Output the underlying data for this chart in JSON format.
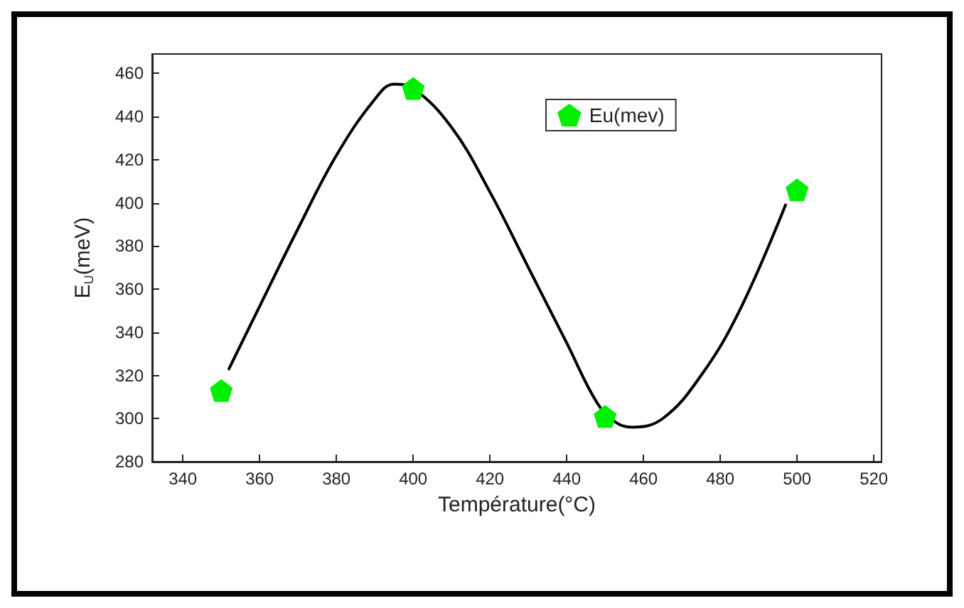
{
  "chart_data": {
    "type": "scatter",
    "xlabel": "Température(°C)",
    "ylabel": "E$_{U}$(meV)",
    "xlim": [
      332,
      522
    ],
    "xticks": [
      340,
      360,
      380,
      400,
      420,
      440,
      460,
      480,
      500,
      520
    ],
    "ylim": [
      280,
      469
    ],
    "yticks": [
      280,
      300,
      320,
      340,
      360,
      380,
      400,
      420,
      440,
      460
    ],
    "grid": false,
    "legend": "top right",
    "series": [
      {
        "type": "line",
        "color": "#000000",
        "marker": "none",
        "line_style": "solid",
        "x": [
          352,
          360,
          370,
          380,
          390,
          395,
          400,
          410,
          420,
          430,
          440,
          448,
          453,
          457,
          465,
          475,
          485,
          497
        ],
        "values": [
          323,
          352,
          388,
          422,
          448,
          455,
          453,
          435,
          405,
          370,
          335,
          307,
          298,
          296,
          300,
          320,
          350,
          399
        ]
      },
      {
        "name": "Eu(mev)",
        "color": "#00ee00",
        "x": [
          350,
          400,
          450,
          500
        ],
        "values": [
          313,
          453,
          301,
          406
        ]
      }
    ]
  }
}
